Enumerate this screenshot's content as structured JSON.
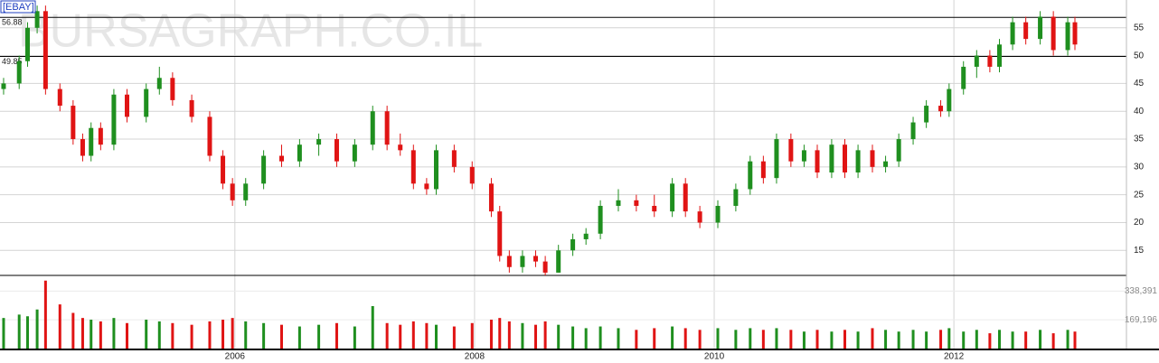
{
  "chart_data": {
    "type": "candlestick",
    "title": "[EBAY]",
    "watermark": "BURSAGRAPH.CO.IL",
    "up_color": "#1f8f1f",
    "down_color": "#e01414",
    "grid": true,
    "x": [
      2004.07,
      2004.2,
      2004.27,
      2004.35,
      2004.42,
      2004.54,
      2004.65,
      2004.73,
      2004.8,
      2004.88,
      2004.99,
      2005.1,
      2005.26,
      2005.37,
      2005.48,
      2005.64,
      2005.79,
      2005.9,
      2005.98,
      2006.09,
      2006.24,
      2006.39,
      2006.54,
      2006.7,
      2006.85,
      2007.0,
      2007.15,
      2007.27,
      2007.38,
      2007.49,
      2007.6,
      2007.68,
      2007.83,
      2007.98,
      2008.14,
      2008.21,
      2008.29,
      2008.4,
      2008.51,
      2008.59,
      2008.7,
      2008.82,
      2008.93,
      2009.05,
      2009.2,
      2009.35,
      2009.5,
      2009.65,
      2009.76,
      2009.88,
      2010.03,
      2010.18,
      2010.3,
      2010.41,
      2010.52,
      2010.64,
      2010.75,
      2010.86,
      2010.98,
      2011.09,
      2011.2,
      2011.32,
      2011.43,
      2011.54,
      2011.66,
      2011.77,
      2011.89,
      2011.96,
      2012.08,
      2012.19,
      2012.3,
      2012.38,
      2012.49,
      2012.6,
      2012.72,
      2012.83,
      2012.95,
      2013.01
    ],
    "open": [
      44,
      45,
      49,
      55,
      58,
      44,
      41,
      35,
      32,
      37,
      34,
      43,
      39,
      44,
      46,
      42,
      39,
      32,
      27,
      24,
      27,
      32,
      31,
      34,
      35,
      31,
      34,
      40,
      34,
      33,
      27,
      26,
      33,
      30,
      27,
      22,
      14,
      12,
      14,
      13,
      11,
      15,
      17,
      18,
      23,
      24,
      23,
      22,
      27,
      22,
      20,
      23,
      26,
      31,
      28,
      35,
      31,
      33,
      29,
      34,
      29,
      33,
      30,
      31,
      35,
      38,
      41,
      40,
      44,
      48,
      50,
      48,
      52,
      56,
      53,
      57,
      51,
      56
    ],
    "high": [
      46,
      50,
      56,
      59,
      59,
      45,
      42,
      36,
      38,
      38,
      44,
      44,
      45,
      48,
      47,
      43,
      40,
      33,
      28,
      28,
      33,
      34,
      35,
      36,
      36,
      35,
      41,
      41,
      36,
      34,
      28,
      34,
      34,
      31,
      28,
      23,
      15,
      15,
      15,
      14,
      16,
      18,
      19,
      24,
      26,
      25,
      25,
      28,
      28,
      23,
      24,
      27,
      32,
      32,
      36,
      36,
      34,
      34,
      35,
      35,
      34,
      34,
      32,
      36,
      39,
      42,
      42,
      45,
      49,
      51,
      51,
      53,
      57,
      57,
      58,
      58,
      57,
      57
    ],
    "low": [
      43,
      44,
      48,
      54,
      43,
      40,
      34,
      31,
      31,
      33,
      33,
      38,
      38,
      43,
      41,
      38,
      31,
      26,
      23,
      23,
      26,
      30,
      30,
      32,
      30,
      30,
      33,
      33,
      32,
      26,
      25,
      25,
      29,
      26,
      21,
      13,
      11,
      11,
      12,
      10.5,
      11,
      14,
      16,
      17,
      22,
      22,
      21,
      21,
      21,
      19,
      19,
      22,
      25,
      27,
      27,
      30,
      30,
      28,
      28,
      28,
      28,
      29,
      29,
      30,
      34,
      37,
      39,
      39,
      43,
      46,
      47,
      47,
      51,
      52,
      52,
      50,
      50,
      51
    ],
    "close": [
      45,
      49,
      55,
      58,
      44,
      41,
      35,
      32,
      37,
      34,
      43,
      39,
      44,
      46,
      42,
      39,
      32,
      27,
      24,
      27,
      32,
      31,
      34,
      35,
      31,
      34,
      40,
      34,
      33,
      27,
      26,
      33,
      30,
      27,
      22,
      14,
      12,
      14,
      13,
      11,
      15,
      17,
      18,
      23,
      24,
      23,
      22,
      27,
      22,
      20,
      23,
      26,
      31,
      28,
      35,
      31,
      33,
      29,
      34,
      29,
      33,
      30,
      31,
      35,
      38,
      41,
      40,
      44,
      48,
      50,
      48,
      52,
      56,
      53,
      57,
      51,
      56,
      52
    ],
    "volume": [
      180000,
      200000,
      190000,
      230000,
      400000,
      260000,
      210000,
      180000,
      170000,
      160000,
      180000,
      150000,
      170000,
      160000,
      150000,
      140000,
      160000,
      170000,
      180000,
      160000,
      150000,
      140000,
      130000,
      140000,
      150000,
      130000,
      250000,
      150000,
      140000,
      160000,
      150000,
      140000,
      130000,
      150000,
      170000,
      180000,
      160000,
      150000,
      140000,
      160000,
      140000,
      130000,
      120000,
      130000,
      120000,
      110000,
      120000,
      130000,
      120000,
      110000,
      120000,
      110000,
      120000,
      110000,
      120000,
      110000,
      100000,
      110000,
      100000,
      110000,
      100000,
      120000,
      110000,
      100000,
      110000,
      100000,
      110000,
      120000,
      100000,
      110000,
      90000,
      110000,
      100000,
      100000,
      110000,
      90000,
      110000,
      100000
    ],
    "xlim": [
      2004.04,
      2013.44
    ],
    "xticks": [
      2006,
      2008,
      2010,
      2012
    ],
    "ylim": [
      10.5,
      60
    ],
    "yticks": [
      15,
      20,
      25,
      30,
      35,
      40,
      45,
      50,
      55
    ],
    "ref_lines": [
      56.88,
      49.85
    ],
    "volume_ylim": [
      0,
      420000
    ],
    "volume_yticks": [
      {
        "value": 169196,
        "label": "169,196"
      },
      {
        "value": 338391,
        "label": "338,391"
      }
    ]
  }
}
